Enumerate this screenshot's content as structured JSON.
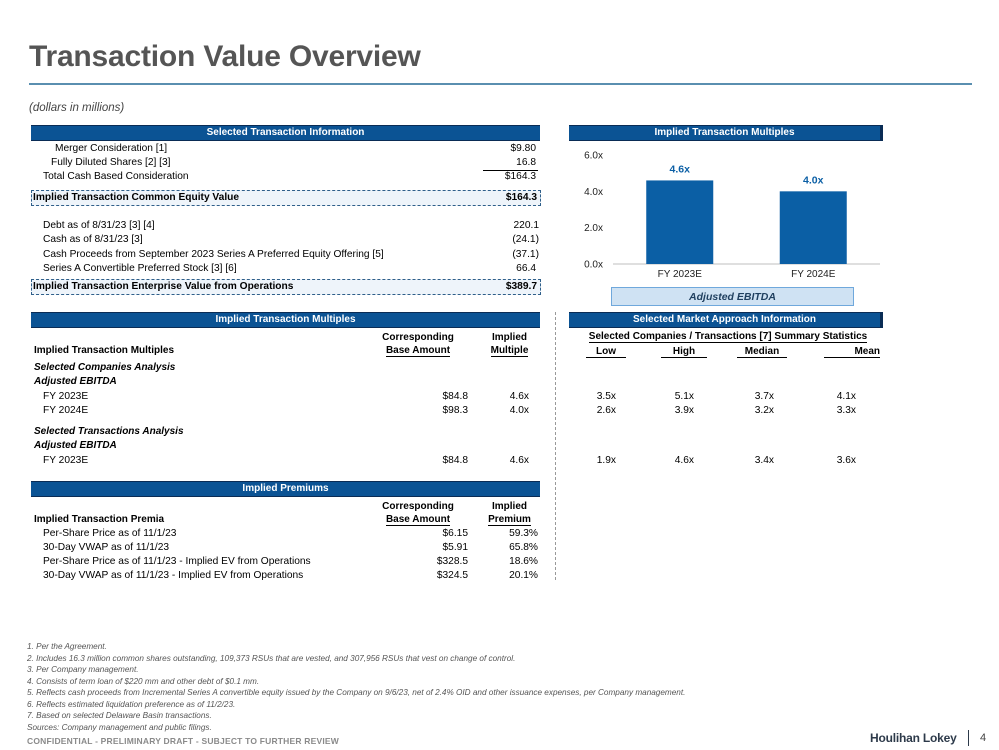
{
  "title": "Transaction Value Overview",
  "subtitle": "(dollars in millions)",
  "sti": {
    "header": "Selected Transaction Information",
    "rows": [
      {
        "label": "Merger Consideration [1]",
        "value": "$9.80"
      },
      {
        "label": "Fully Diluted Shares [2] [3]",
        "value": "16.8"
      },
      {
        "label": "Total Cash Based Consideration",
        "value": "$164.3"
      }
    ],
    "equity": {
      "label": "Implied Transaction Common Equity Value",
      "value": "$164.3"
    },
    "adjustments": [
      {
        "label": "Debt as of 8/31/23 [3] [4]",
        "value": "220.1"
      },
      {
        "label": "Cash as of 8/31/23 [3]",
        "value": "(24.1)"
      },
      {
        "label": "Cash Proceeds from September 2023 Series A Preferred Equity Offering [5]",
        "value": "(37.1)"
      },
      {
        "label": "Series A Convertible Preferred Stock [3] [6]",
        "value": "66.4"
      }
    ],
    "ev": {
      "label": "Implied Transaction Enterprise Value from Operations",
      "value": "$389.7"
    }
  },
  "itm_chart": {
    "header": "Implied Transaction Multiples",
    "legend": "Adjusted EBITDA"
  },
  "chart_data": {
    "type": "bar",
    "title": "Implied Transaction Multiples",
    "categories": [
      "FY 2023E",
      "FY 2024E"
    ],
    "values": [
      4.6,
      4.0
    ],
    "data_labels": [
      "4.6x",
      "4.0x"
    ],
    "yticks": [
      "6.0x",
      "4.0x",
      "2.0x",
      "0.0x"
    ],
    "ytick_values": [
      6.0,
      4.0,
      2.0,
      0.0
    ],
    "ylim": [
      0,
      6
    ],
    "series_name": "Adjusted EBITDA",
    "bar_color": "#0b5fa5",
    "label_color": "#0b5fa5"
  },
  "multiples": {
    "header": "Implied Transaction Multiples",
    "col_label": "Implied Transaction Multiples",
    "col_base_1": "Corresponding",
    "col_base_2": "Base Amount",
    "col_mult_1": "Implied",
    "col_mult_2": "Multiple",
    "section1": "Selected Companies Analysis",
    "section1_sub": "Adjusted EBITDA",
    "s1_rows": [
      {
        "label": "FY 2023E",
        "base": "$84.8",
        "mult": "4.6x"
      },
      {
        "label": "FY 2024E",
        "base": "$98.3",
        "mult": "4.0x"
      }
    ],
    "section2": "Selected Transactions Analysis",
    "section2_sub": "Adjusted EBITDA",
    "s2_rows": [
      {
        "label": "FY 2023E",
        "base": "$84.8",
        "mult": "4.6x"
      }
    ]
  },
  "market": {
    "header": "Selected Market Approach Information",
    "subheader": "Selected Companies / Transactions [7] Summary Statistics",
    "cols": [
      "Low",
      "High",
      "Median",
      "Mean"
    ],
    "s1_rows": [
      [
        "3.5x",
        "5.1x",
        "3.7x",
        "4.1x"
      ],
      [
        "2.6x",
        "3.9x",
        "3.2x",
        "3.3x"
      ]
    ],
    "s2_rows": [
      [
        "1.9x",
        "4.6x",
        "3.4x",
        "3.6x"
      ]
    ]
  },
  "premiums": {
    "header": "Implied Premiums",
    "col_label": "Implied Transaction Premia",
    "col_base_1": "Corresponding",
    "col_base_2": "Base Amount",
    "col_prem_1": "Implied",
    "col_prem_2": "Premium",
    "rows": [
      {
        "label": "Per-Share Price as of 11/1/23",
        "base": "$6.15",
        "prem": "59.3%"
      },
      {
        "label": "30-Day VWAP as of 11/1/23",
        "base": "$5.91",
        "prem": "65.8%"
      },
      {
        "label": "Per-Share Price as of 11/1/23 - Implied EV from Operations",
        "base": "$328.5",
        "prem": "18.6%"
      },
      {
        "label": "30-Day VWAP as of 11/1/23 - Implied EV from Operations",
        "base": "$324.5",
        "prem": "20.1%"
      }
    ]
  },
  "footnotes": [
    "1. Per the Agreement.",
    "2. Includes 16.3 million common shares outstanding, 109,373 RSUs that are vested, and 307,956 RSUs that vest on change of control.",
    "3. Per Company management.",
    "4. Consists of term loan of $220 mm and other debt of $0.1 mm.",
    "5. Reflects cash proceeds from Incremental Series A convertible equity issued by the Company on 9/6/23, net of 2.4% OID and other issuance expenses, per Company management.",
    "6. Reflects estimated liquidation preference as of 11/2/23.",
    "7. Based on selected Delaware Basin transactions.",
    "Sources: Company management and public filings."
  ],
  "confidential": "CONFIDENTIAL - PRELIMINARY DRAFT - SUBJECT TO FURTHER REVIEW",
  "brand": "Houlihan Lokey",
  "page_number": "4"
}
